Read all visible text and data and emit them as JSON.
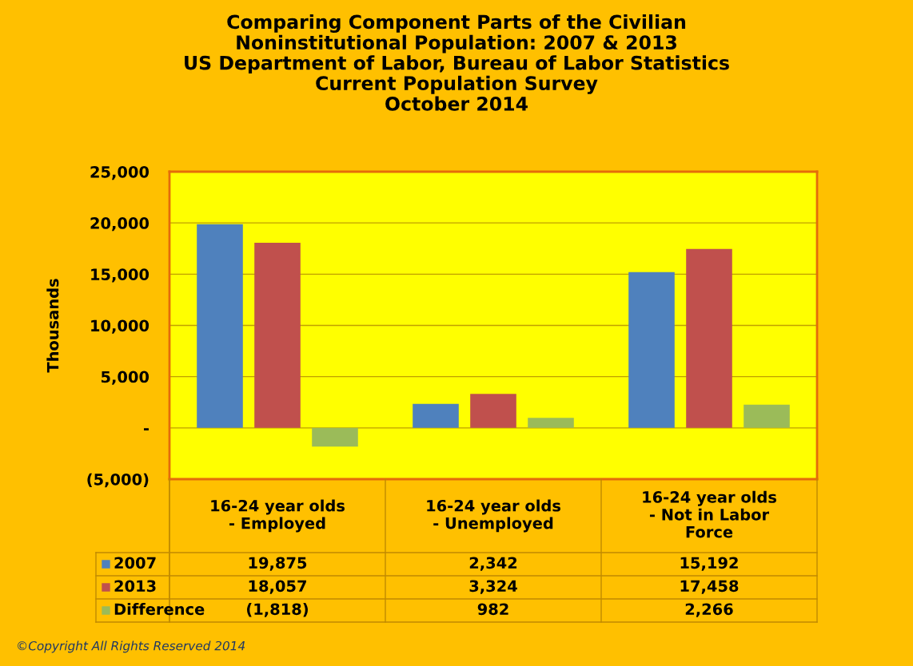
{
  "chart_data": {
    "type": "bar",
    "title": "Comparing Component Parts of the Civilian\nNoninstitutional Population: 2007 & 2013\nUS Department of Labor, Bureau of Labor Statistics\nCurrent Population Survey\nOctober 2014",
    "ylabel": "Thousands",
    "categories": [
      "16-24 year olds\n- Employed",
      "16-24 year olds\n- Unemployed",
      "16-24 year olds\n- Not in Labor\nForce"
    ],
    "series": [
      {
        "name": "2007",
        "color": "#4f81bd",
        "values": [
          19875,
          2342,
          15192
        ],
        "value_labels": [
          "19,875",
          "2,342",
          "15,192"
        ]
      },
      {
        "name": "2013",
        "color": "#c0504d",
        "values": [
          18057,
          3324,
          17458
        ],
        "value_labels": [
          "18,057",
          "3,324",
          "17,458"
        ]
      },
      {
        "name": "Difference",
        "color": "#9bbb59",
        "values": [
          -1818,
          982,
          2266
        ],
        "value_labels": [
          "(1,818)",
          "982",
          "2,266"
        ]
      }
    ],
    "ylim": [
      -5000,
      25000
    ],
    "yticks": [
      {
        "value": -5000,
        "label": "(5,000)"
      },
      {
        "value": 0,
        "label": "-"
      },
      {
        "value": 5000,
        "label": "5,000"
      },
      {
        "value": 10000,
        "label": "10,000"
      },
      {
        "value": 15000,
        "label": "15,000"
      },
      {
        "value": 20000,
        "label": "20,000"
      },
      {
        "value": 25000,
        "label": "25,000"
      }
    ],
    "grid": "y",
    "legend": "bottom left",
    "annotations": [
      "©Copyright All Rights Reserved 2014"
    ]
  }
}
